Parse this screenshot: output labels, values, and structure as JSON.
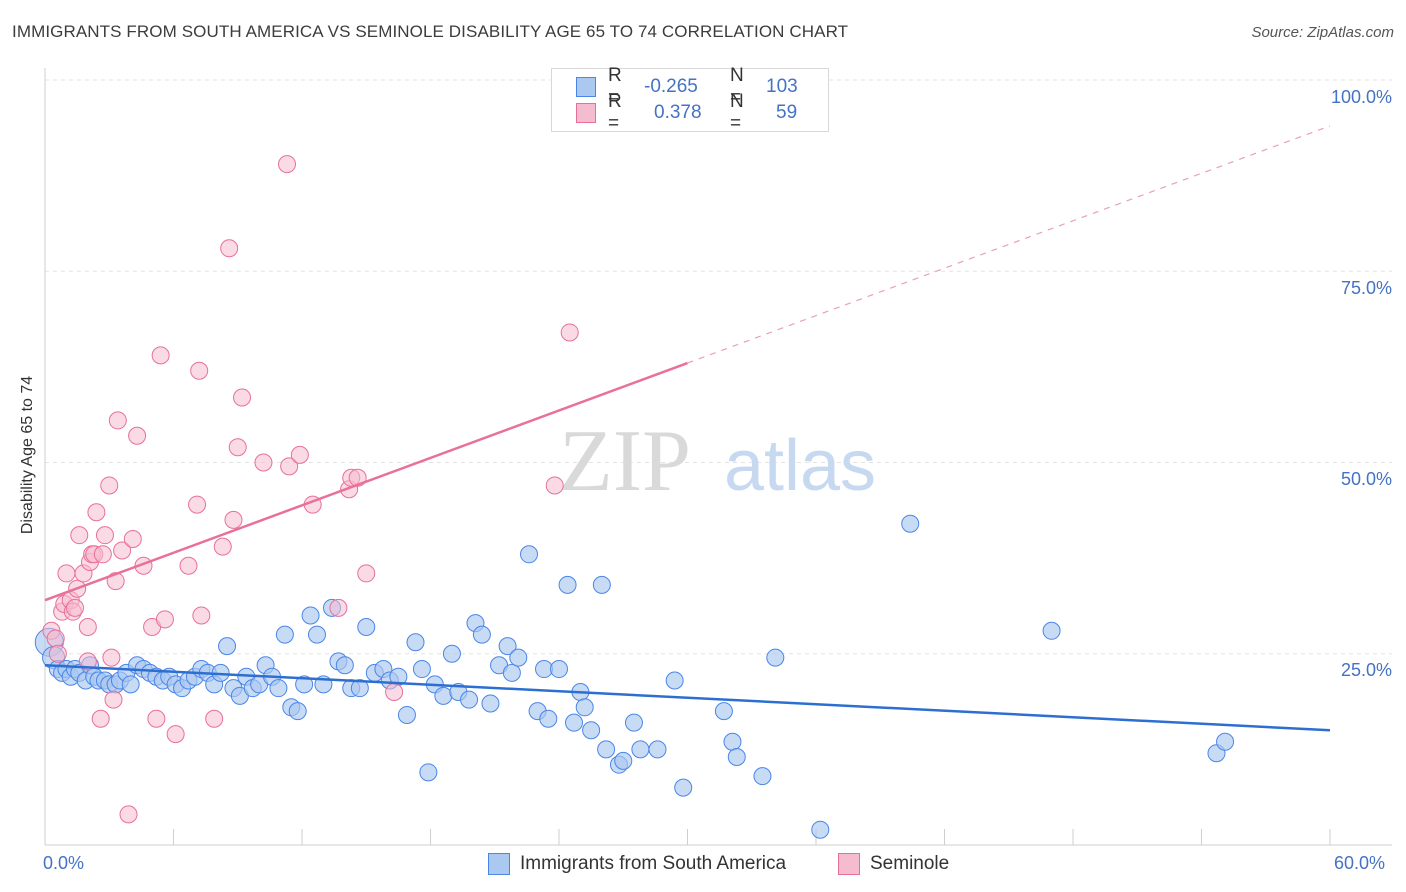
{
  "title": "IMMIGRANTS FROM SOUTH AMERICA VS SEMINOLE DISABILITY AGE 65 TO 74 CORRELATION CHART",
  "source": "Source: ZipAtlas.com",
  "watermark": {
    "zip": "ZIP",
    "atlas": "atlas"
  },
  "legend": {
    "r_label": "R =",
    "n_label": "N =",
    "series1": {
      "r": "-0.265",
      "n": "103"
    },
    "series2": {
      "r": "0.378",
      "n": "59"
    }
  },
  "colors": {
    "blue": "#4a86e8",
    "blue_fill": "#aac8f0",
    "pink": "#e8709a",
    "pink_fill": "#f5bcd0",
    "tick_text": "#4472c4"
  },
  "chart_data": {
    "type": "scatter",
    "xlabel": "",
    "ylabel": "Disability Age 65 to 74",
    "x_ticks": [
      "0.0%",
      "60.0%"
    ],
    "y_ticks": [
      "100.0%",
      "75.0%",
      "50.0%",
      "25.0%"
    ],
    "xlim": [
      0,
      60
    ],
    "ylim": [
      0,
      100
    ],
    "grid": true,
    "legend_placement": "top-center",
    "series": [
      {
        "name": "Immigrants from South America",
        "color": "#4a86e8",
        "trend": {
          "x": [
            0,
            60
          ],
          "y": [
            23.5,
            15.0
          ]
        },
        "points": [
          [
            0.2,
            26.5
          ],
          [
            0.4,
            24.5
          ],
          [
            0.6,
            23.0
          ],
          [
            0.8,
            22.5
          ],
          [
            1.0,
            23.0
          ],
          [
            1.2,
            22.0
          ],
          [
            1.4,
            23.0
          ],
          [
            1.6,
            22.5
          ],
          [
            1.9,
            21.5
          ],
          [
            2.1,
            23.5
          ],
          [
            2.3,
            22.0
          ],
          [
            2.5,
            21.5
          ],
          [
            2.8,
            21.5
          ],
          [
            3.0,
            21.0
          ],
          [
            3.3,
            21.0
          ],
          [
            3.5,
            21.5
          ],
          [
            3.8,
            22.5
          ],
          [
            4.0,
            21.0
          ],
          [
            4.3,
            23.5
          ],
          [
            4.6,
            23.0
          ],
          [
            4.9,
            22.5
          ],
          [
            5.2,
            22.0
          ],
          [
            5.5,
            21.5
          ],
          [
            5.8,
            22.0
          ],
          [
            6.1,
            21.0
          ],
          [
            6.4,
            20.5
          ],
          [
            6.7,
            21.5
          ],
          [
            7.0,
            22.0
          ],
          [
            7.3,
            23.0
          ],
          [
            7.6,
            22.5
          ],
          [
            7.9,
            21.0
          ],
          [
            8.2,
            22.5
          ],
          [
            8.5,
            26.0
          ],
          [
            8.8,
            20.5
          ],
          [
            9.1,
            19.5
          ],
          [
            9.4,
            22.0
          ],
          [
            9.7,
            20.5
          ],
          [
            10.0,
            21.0
          ],
          [
            10.3,
            23.5
          ],
          [
            10.6,
            22.0
          ],
          [
            10.9,
            20.5
          ],
          [
            11.2,
            27.5
          ],
          [
            11.5,
            18.0
          ],
          [
            11.8,
            17.5
          ],
          [
            12.1,
            21.0
          ],
          [
            12.4,
            30.0
          ],
          [
            12.7,
            27.5
          ],
          [
            13.0,
            21.0
          ],
          [
            13.4,
            31.0
          ],
          [
            13.7,
            24.0
          ],
          [
            14.0,
            23.5
          ],
          [
            14.3,
            20.5
          ],
          [
            14.7,
            20.5
          ],
          [
            15.0,
            28.5
          ],
          [
            15.4,
            22.5
          ],
          [
            15.8,
            23.0
          ],
          [
            16.1,
            21.5
          ],
          [
            16.5,
            22.0
          ],
          [
            16.9,
            17.0
          ],
          [
            17.3,
            26.5
          ],
          [
            17.6,
            23.0
          ],
          [
            17.9,
            9.5
          ],
          [
            18.2,
            21.0
          ],
          [
            18.6,
            19.5
          ],
          [
            19.0,
            25.0
          ],
          [
            19.3,
            20.0
          ],
          [
            19.8,
            19.0
          ],
          [
            20.1,
            29.0
          ],
          [
            20.4,
            27.5
          ],
          [
            20.8,
            18.5
          ],
          [
            21.2,
            23.5
          ],
          [
            21.6,
            26.0
          ],
          [
            21.8,
            22.5
          ],
          [
            22.1,
            24.5
          ],
          [
            22.6,
            38.0
          ],
          [
            23.0,
            17.5
          ],
          [
            23.3,
            23.0
          ],
          [
            23.5,
            16.5
          ],
          [
            24.0,
            23.0
          ],
          [
            24.4,
            34.0
          ],
          [
            24.7,
            16.0
          ],
          [
            25.0,
            20.0
          ],
          [
            25.2,
            18.0
          ],
          [
            25.5,
            15.0
          ],
          [
            26.0,
            34.0
          ],
          [
            26.2,
            12.5
          ],
          [
            26.8,
            10.5
          ],
          [
            27.0,
            11.0
          ],
          [
            27.5,
            16.0
          ],
          [
            27.8,
            12.5
          ],
          [
            28.6,
            12.5
          ],
          [
            29.4,
            21.5
          ],
          [
            29.8,
            7.5
          ],
          [
            31.7,
            17.5
          ],
          [
            32.1,
            13.5
          ],
          [
            32.3,
            11.5
          ],
          [
            33.5,
            9.0
          ],
          [
            34.1,
            24.5
          ],
          [
            36.2,
            2.0
          ],
          [
            40.4,
            42.0
          ],
          [
            47.0,
            28.0
          ],
          [
            54.7,
            12.0
          ],
          [
            55.1,
            13.5
          ]
        ]
      },
      {
        "name": "Seminole",
        "color": "#e8709a",
        "trend": {
          "x": [
            0,
            30
          ],
          "y": [
            32.0,
            63.0
          ]
        },
        "trend_dashed": {
          "x": [
            30,
            60
          ],
          "y": [
            63.0,
            94.0
          ]
        },
        "points": [
          [
            0.3,
            28.0
          ],
          [
            0.5,
            27.0
          ],
          [
            0.6,
            25.0
          ],
          [
            0.8,
            30.5
          ],
          [
            0.9,
            31.5
          ],
          [
            1.0,
            35.5
          ],
          [
            1.2,
            32.0
          ],
          [
            1.3,
            30.5
          ],
          [
            1.4,
            31.0
          ],
          [
            1.5,
            33.5
          ],
          [
            1.6,
            40.5
          ],
          [
            1.8,
            35.5
          ],
          [
            2.0,
            24.0
          ],
          [
            2.0,
            28.5
          ],
          [
            2.1,
            37.0
          ],
          [
            2.2,
            38.0
          ],
          [
            2.3,
            38.0
          ],
          [
            2.4,
            43.5
          ],
          [
            2.6,
            16.5
          ],
          [
            2.7,
            38.0
          ],
          [
            2.8,
            40.5
          ],
          [
            3.0,
            47.0
          ],
          [
            3.1,
            24.5
          ],
          [
            3.2,
            19.0
          ],
          [
            3.3,
            34.5
          ],
          [
            3.4,
            55.5
          ],
          [
            3.6,
            38.5
          ],
          [
            3.9,
            4.0
          ],
          [
            4.1,
            40.0
          ],
          [
            4.3,
            53.5
          ],
          [
            4.6,
            36.5
          ],
          [
            5.0,
            28.5
          ],
          [
            5.2,
            16.5
          ],
          [
            5.4,
            64.0
          ],
          [
            5.6,
            29.5
          ],
          [
            6.1,
            14.5
          ],
          [
            6.7,
            36.5
          ],
          [
            7.1,
            44.5
          ],
          [
            7.2,
            62.0
          ],
          [
            7.3,
            30.0
          ],
          [
            7.9,
            16.5
          ],
          [
            8.3,
            39.0
          ],
          [
            8.6,
            78.0
          ],
          [
            8.8,
            42.5
          ],
          [
            9.0,
            52.0
          ],
          [
            9.2,
            58.5
          ],
          [
            10.2,
            50.0
          ],
          [
            11.3,
            89.0
          ],
          [
            11.4,
            49.5
          ],
          [
            11.9,
            51.0
          ],
          [
            12.5,
            44.5
          ],
          [
            13.7,
            31.0
          ],
          [
            14.2,
            46.5
          ],
          [
            14.3,
            48.0
          ],
          [
            14.6,
            48.0
          ],
          [
            15.0,
            35.5
          ],
          [
            16.3,
            20.0
          ],
          [
            23.8,
            47.0
          ],
          [
            24.5,
            67.0
          ]
        ]
      }
    ]
  }
}
